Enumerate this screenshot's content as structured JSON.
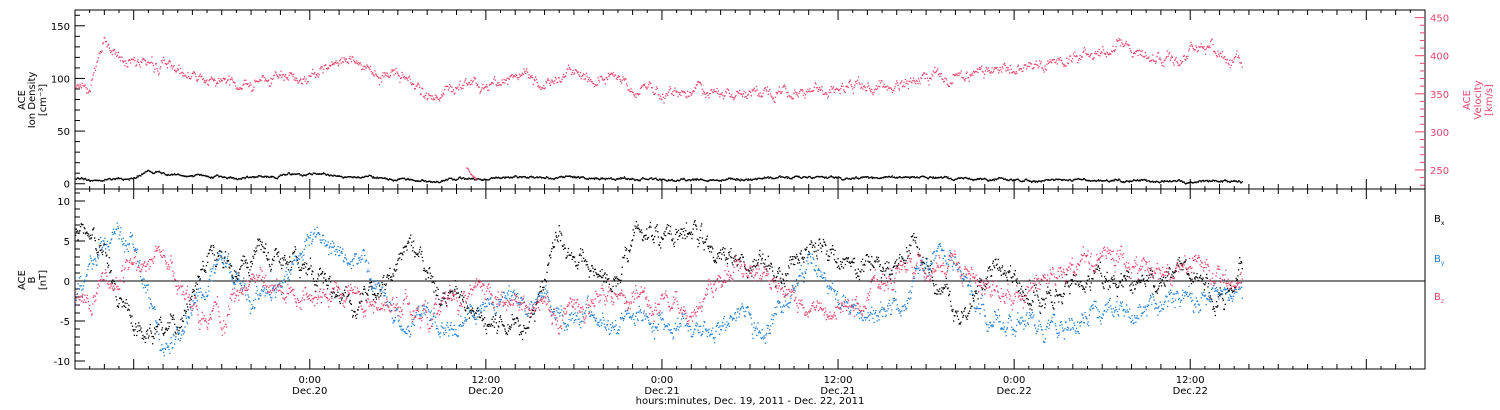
{
  "colors": {
    "black": "#000000",
    "pink": "#e8456e",
    "blue": "#1f7fd8"
  },
  "xaxis": {
    "label": "hours:minutes, Dec. 19, 2011 - Dec. 22, 2011",
    "range": [
      "2011-12-19T08:00",
      "2011-12-23T04:00"
    ],
    "ticks": [
      {
        "t": "2011-12-20T00:00",
        "time": "0:00",
        "day": "Dec.20"
      },
      {
        "t": "2011-12-20T12:00",
        "time": "12:00",
        "day": "Dec.20"
      },
      {
        "t": "2011-12-21T00:00",
        "time": "0:00",
        "day": "Dec.21"
      },
      {
        "t": "2011-12-21T12:00",
        "time": "12:00",
        "day": "Dec.21"
      },
      {
        "t": "2011-12-22T00:00",
        "time": "0:00",
        "day": "Dec.22"
      },
      {
        "t": "2011-12-22T12:00",
        "time": "12:00",
        "day": "Dec.22"
      }
    ]
  },
  "chart_data": [
    {
      "type": "scatter",
      "panel": "top",
      "ylabel_left": [
        "ACE",
        "Ion Density",
        "[cm⁻³]"
      ],
      "ylabel_right": [
        "ACE",
        "Velocity",
        "[km/s]"
      ],
      "ylim_left": [
        -5,
        165
      ],
      "ylim_right": [
        225,
        460
      ],
      "yticks_left": [
        "0",
        "50",
        "100",
        "150"
      ],
      "yticks_right": [
        "250",
        "300",
        "350",
        "400",
        "450"
      ],
      "series": [
        {
          "axis": "left",
          "color": "black",
          "x": [
            "2011-12-19T08:00",
            "2011-12-19T10:00",
            "2011-12-19T12:00",
            "2011-12-19T13:00",
            "2011-12-19T14:00",
            "2011-12-19T15:00",
            "2011-12-19T16:00",
            "2011-12-19T18:00",
            "2011-12-19T20:00",
            "2011-12-19T22:00",
            "2011-12-20T00:00",
            "2011-12-20T02:00",
            "2011-12-20T04:00",
            "2011-12-20T06:00",
            "2011-12-20T08:00",
            "2011-12-20T10:00",
            "2011-12-20T12:00",
            "2011-12-20T16:00",
            "2011-12-20T20:00",
            "2011-12-21T00:00",
            "2011-12-21T06:00",
            "2011-12-21T12:00",
            "2011-12-21T18:00",
            "2011-12-22T00:00",
            "2011-12-22T06:00",
            "2011-12-22T12:00",
            "2011-12-22T15:30"
          ],
          "y": [
            5,
            4,
            6,
            13,
            10,
            7,
            8,
            6,
            7,
            8,
            10,
            8,
            6,
            4,
            3,
            5,
            6,
            7,
            6,
            4,
            5,
            7,
            6,
            4,
            4,
            3,
            3
          ]
        },
        {
          "axis": "right",
          "color": "pink",
          "x": [
            "2011-12-19T08:00",
            "2011-12-19T09:00",
            "2011-12-19T10:00",
            "2011-12-19T10:30",
            "2011-12-19T11:00",
            "2011-12-19T12:00",
            "2011-12-19T14:00",
            "2011-12-19T16:00",
            "2011-12-19T18:00",
            "2011-12-19T20:00",
            "2011-12-19T22:00",
            "2011-12-20T00:00",
            "2011-12-20T02:00",
            "2011-12-20T03:00",
            "2011-12-20T04:00",
            "2011-12-20T06:00",
            "2011-12-20T08:00",
            "2011-12-20T10:00",
            "2011-12-20T12:00",
            "2011-12-20T14:00",
            "2011-12-20T16:00",
            "2011-12-20T18:00",
            "2011-12-20T20:00",
            "2011-12-20T22:00",
            "2011-12-21T00:00",
            "2011-12-21T04:00",
            "2011-12-21T08:00",
            "2011-12-21T12:00",
            "2011-12-21T16:00",
            "2011-12-21T20:00",
            "2011-12-22T00:00",
            "2011-12-22T04:00",
            "2011-12-22T06:00",
            "2011-12-22T07:00",
            "2011-12-22T08:00",
            "2011-12-22T10:00",
            "2011-12-22T12:00",
            "2011-12-22T14:00",
            "2011-12-22T15:30"
          ],
          "y": [
            365,
            360,
            432,
            395,
            392,
            390,
            385,
            375,
            365,
            362,
            378,
            370,
            385,
            393,
            383,
            372,
            350,
            360,
            362,
            368,
            370,
            372,
            378,
            356,
            353,
            350,
            354,
            360,
            362,
            375,
            390,
            398,
            402,
            418,
            398,
            392,
            408,
            410,
            388
          ]
        },
        {
          "axis": "left",
          "color": "pink",
          "x": [
            "2011-12-20T10:40",
            "2011-12-20T11:00",
            "2011-12-20T11:20"
          ],
          "y": [
            15,
            8,
            3
          ]
        }
      ]
    },
    {
      "type": "scatter",
      "panel": "bottom",
      "ylabel": [
        "ACE",
        "B",
        "[nT]"
      ],
      "ylim": [
        -11,
        11.5
      ],
      "yticks": [
        "-10",
        "-5",
        "0",
        "5",
        "10"
      ],
      "legend_position": "right",
      "legend": [
        {
          "label": "B",
          "sub": "x",
          "color": "black"
        },
        {
          "label": "B",
          "sub": "y",
          "color": "blue"
        },
        {
          "label": "B",
          "sub": "z",
          "color": "pink"
        }
      ],
      "series": [
        {
          "name": "Bx",
          "color": "black",
          "x": [
            "2011-12-19T08:00",
            "2011-12-19T10:00",
            "2011-12-19T11:00",
            "2011-12-19T13:00",
            "2011-12-19T15:00",
            "2011-12-19T17:00",
            "2011-12-19T19:00",
            "2011-12-19T21:00",
            "2011-12-20T00:00",
            "2011-12-20T03:00",
            "2011-12-20T05:00",
            "2011-12-20T07:00",
            "2011-12-20T09:00",
            "2011-12-20T11:00",
            "2011-12-20T13:00",
            "2011-12-20T15:00",
            "2011-12-20T17:00",
            "2011-12-20T19:00",
            "2011-12-20T21:00",
            "2011-12-20T22:00",
            "2011-12-21T01:00",
            "2011-12-21T03:00",
            "2011-12-21T05:00",
            "2011-12-21T08:00",
            "2011-12-21T11:00",
            "2011-12-21T14:00",
            "2011-12-21T17:00",
            "2011-12-21T20:00",
            "2011-12-21T23:00",
            "2011-12-22T02:00",
            "2011-12-22T05:00",
            "2011-12-22T08:00",
            "2011-12-22T11:00",
            "2011-12-22T14:00",
            "2011-12-22T15:30"
          ],
          "y": [
            6,
            4,
            -3,
            -6,
            -6,
            3,
            2,
            4,
            2,
            -3,
            0,
            4,
            -2,
            -3,
            -6,
            -5,
            5,
            3,
            -1,
            7,
            5,
            5,
            3,
            1,
            4,
            1,
            5,
            -4,
            2,
            -3,
            1,
            -1,
            2,
            -2,
            2
          ]
        },
        {
          "name": "By",
          "color": "blue",
          "x": [
            "2011-12-19T08:00",
            "2011-12-19T10:00",
            "2011-12-19T12:00",
            "2011-12-19T14:00",
            "2011-12-19T16:00",
            "2011-12-19T18:00",
            "2011-12-19T20:00",
            "2011-12-19T22:00",
            "2011-12-20T00:00",
            "2011-12-20T03:00",
            "2011-12-20T06:00",
            "2011-12-20T08:00",
            "2011-12-20T10:00",
            "2011-12-20T13:00",
            "2011-12-20T16:00",
            "2011-12-20T19:00",
            "2011-12-20T22:00",
            "2011-12-21T01:00",
            "2011-12-21T04:00",
            "2011-12-21T07:00",
            "2011-12-21T10:00",
            "2011-12-21T13:00",
            "2011-12-21T16:00",
            "2011-12-21T19:00",
            "2011-12-21T22:00",
            "2011-12-22T01:00",
            "2011-12-22T04:00",
            "2011-12-22T07:00",
            "2011-12-22T10:00",
            "2011-12-22T13:00",
            "2011-12-22T15:30"
          ],
          "y": [
            -3,
            5,
            4,
            -9,
            -3,
            4,
            -3,
            -1,
            5,
            3,
            -4,
            -5,
            -6,
            -2,
            -2,
            -5,
            -4,
            -6,
            -5,
            -6,
            3,
            -4,
            -3,
            5,
            -4,
            -6,
            -5,
            -4,
            -3,
            -2,
            -1
          ]
        },
        {
          "name": "Bz",
          "color": "pink",
          "x": [
            "2011-12-19T08:00",
            "2011-12-19T10:00",
            "2011-12-19T12:00",
            "2011-12-19T14:00",
            "2011-12-19T16:00",
            "2011-12-19T18:00",
            "2011-12-19T20:00",
            "2011-12-19T23:00",
            "2011-12-20T02:00",
            "2011-12-20T05:00",
            "2011-12-20T08:00",
            "2011-12-20T11:00",
            "2011-12-20T14:00",
            "2011-12-20T17:00",
            "2011-12-20T20:00",
            "2011-12-20T23:00",
            "2011-12-21T02:00",
            "2011-12-21T05:00",
            "2011-12-21T08:00",
            "2011-12-21T11:00",
            "2011-12-21T14:00",
            "2011-12-21T17:00",
            "2011-12-21T20:00",
            "2011-12-22T00:00",
            "2011-12-22T03:00",
            "2011-12-22T06:00",
            "2011-12-22T09:00",
            "2011-12-22T12:00",
            "2011-12-22T15:30"
          ],
          "y": [
            -3,
            -1,
            2,
            4,
            -4,
            -5,
            1,
            -2,
            -1,
            -3,
            -4,
            -1,
            -3,
            -4,
            -2,
            -2,
            -3,
            2,
            -1,
            -4,
            -2,
            3,
            2,
            -2,
            1,
            3,
            1,
            2,
            -1
          ]
        }
      ]
    }
  ]
}
